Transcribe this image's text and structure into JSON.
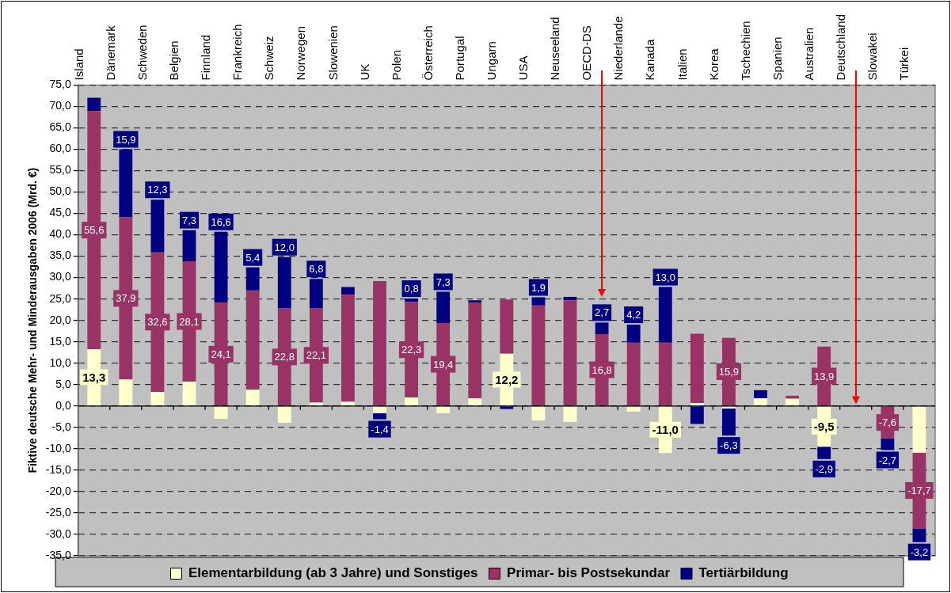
{
  "chart_data": {
    "type": "bar",
    "stacked": true,
    "ylabel": "Fiktive deutsche Mehr- und Minderausgaben 2006 (Mrd. €)",
    "categories": [
      "Island",
      "Dänemark",
      "Schweden",
      "Belgien",
      "Finnland",
      "Frankreich",
      "Schweiz",
      "Norwegen",
      "Slowenien",
      "UK",
      "Polen",
      "Österreich",
      "Portugal",
      "Ungarn",
      "USA",
      "Neuseeland",
      "OECD-DS",
      "Niederlande",
      "Kanada",
      "Italien",
      "Korea",
      "Tschechien",
      "Spanien",
      "Australien",
      "Deutschland",
      "Slowakei",
      "Türkei"
    ],
    "series": [
      {
        "name": "Elementarbildung (ab 3 Jahre) und Sonstiges",
        "color": "#ffffcc",
        "values": [
          13.3,
          6.2,
          3.3,
          5.7,
          -3.0,
          3.8,
          -3.9,
          0.8,
          1.0,
          -1.7,
          2.0,
          -1.7,
          1.8,
          12.2,
          -3.4,
          -3.7,
          null,
          -1.3,
          -11.0,
          0.7,
          -0.6,
          1.8,
          1.7,
          -9.5,
          null,
          null,
          -10.9
        ],
        "value_labels": [
          "13,3",
          null,
          null,
          null,
          null,
          null,
          null,
          null,
          null,
          null,
          null,
          null,
          null,
          "12,2",
          null,
          null,
          null,
          null,
          "-11,0",
          null,
          null,
          null,
          null,
          "-9,5",
          null,
          null,
          null
        ]
      },
      {
        "name": "Primar- bis Postsekundar",
        "color": "#993366",
        "values": [
          55.6,
          37.9,
          32.6,
          28.1,
          24.1,
          23.2,
          22.8,
          22.1,
          25.0,
          29.2,
          22.3,
          19.4,
          22.3,
          12.7,
          23.5,
          24.7,
          16.8,
          14.8,
          14.8,
          16.2,
          15.9,
          null,
          0.7,
          13.9,
          null,
          -7.6,
          -17.7
        ],
        "value_labels": [
          "55,6",
          "37,9",
          "32,6",
          "28,1",
          "24,1",
          null,
          "22,8",
          "22,1",
          null,
          null,
          "22,3",
          "19,4",
          null,
          null,
          null,
          null,
          "16,8",
          null,
          null,
          null,
          "15,9",
          null,
          null,
          "13,9",
          null,
          "-7,6",
          "-17,7"
        ]
      },
      {
        "name": "Tertiärbildung",
        "color": "#000080",
        "values": [
          3.1,
          15.9,
          12.3,
          7.3,
          16.6,
          5.4,
          12.0,
          6.8,
          1.8,
          -1.4,
          0.8,
          7.3,
          0.6,
          -0.7,
          1.9,
          0.8,
          2.7,
          4.2,
          13.0,
          -4.2,
          -6.3,
          1.9,
          null,
          -2.9,
          null,
          -2.7,
          -3.2
        ],
        "value_labels": [
          null,
          "15,9",
          "12,3",
          "7,3",
          "16,6",
          "5,4",
          "12,0",
          "6,8",
          null,
          "-1,4",
          "0,8",
          "7,3",
          null,
          null,
          "1,9",
          null,
          "2,7",
          "4,2",
          "13,0",
          null,
          "-6,3",
          null,
          null,
          "-2,9",
          null,
          "-2,7",
          "-3,2"
        ]
      }
    ],
    "ylim": [
      -35,
      75
    ],
    "yticks": [
      {
        "value": -35,
        "label": "-35,0"
      },
      {
        "value": -30,
        "label": "-30,0"
      },
      {
        "value": -25,
        "label": "-25,0"
      },
      {
        "value": -20,
        "label": "-20,0"
      },
      {
        "value": -15,
        "label": "-15,0"
      },
      {
        "value": -10,
        "label": "-10,0"
      },
      {
        "value": -5,
        "label": "-5,0"
      },
      {
        "value": 0,
        "label": "0,0"
      },
      {
        "value": 5,
        "label": "5,0"
      },
      {
        "value": 10,
        "label": "10,0"
      },
      {
        "value": 15,
        "label": "15,0"
      },
      {
        "value": 20,
        "label": "20,0"
      },
      {
        "value": 25,
        "label": "25,0"
      },
      {
        "value": 30,
        "label": "30,0"
      },
      {
        "value": 35,
        "label": "35,0"
      },
      {
        "value": 40,
        "label": "40,0"
      },
      {
        "value": 45,
        "label": "45,0"
      },
      {
        "value": 50,
        "label": "50,0"
      },
      {
        "value": 55,
        "label": "55,0"
      },
      {
        "value": 60,
        "label": "60,0"
      },
      {
        "value": 65,
        "label": "65,0"
      },
      {
        "value": 70,
        "label": "70,0"
      },
      {
        "value": 75,
        "label": "75,0"
      }
    ],
    "grid": "y",
    "legend": "bottom"
  }
}
